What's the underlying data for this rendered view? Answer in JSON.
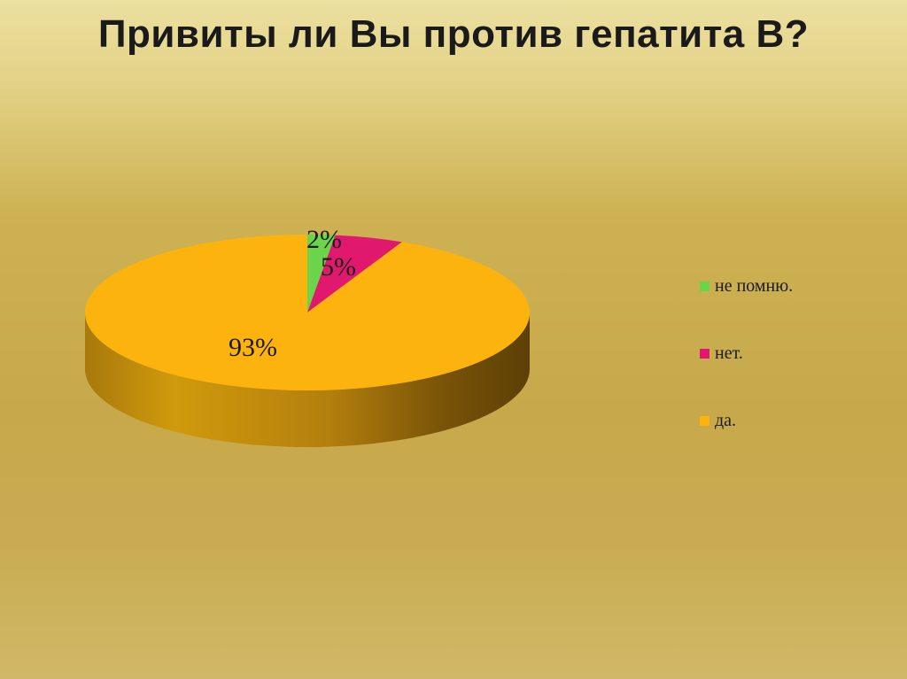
{
  "title": "Привиты ли  Вы против гепатита В?",
  "chart_data": {
    "type": "pie",
    "style": "3d",
    "title": "Привиты ли  Вы против гепатита В?",
    "series": [
      {
        "label": "не помню.",
        "value": 2,
        "value_label": "2%",
        "color": "#6cd44a"
      },
      {
        "label": "нет.",
        "value": 5,
        "value_label": "5%",
        "color": "#e0196e"
      },
      {
        "label": "да.",
        "value": 93,
        "value_label": "93%",
        "color": "#fdb30e"
      }
    ],
    "legend_position": "right"
  }
}
